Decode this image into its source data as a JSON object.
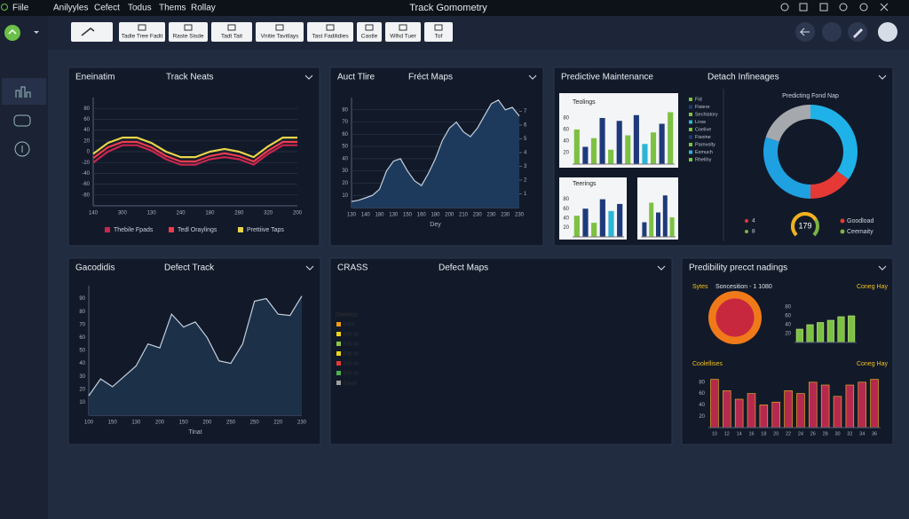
{
  "menu": [
    "Fiile",
    "Anilyyles",
    "Cefect",
    "Todus",
    "Thems",
    "Rollay"
  ],
  "app_title": "Track Gomometry",
  "toolbar": [
    "Tadle Tree Fadit",
    "Raste Sisde",
    "Tadt Tait",
    "Vnitie Tavitlays",
    "Tast Fadilidies",
    "Castle",
    "Wlhd Tuer",
    "Tof"
  ],
  "panels": [
    {
      "tag": "Eneinatim",
      "title": "Track Neats",
      "charts": [
        {
          "type": "line",
          "categories": [
            "140",
            null,
            "300",
            null,
            "130",
            null,
            "240",
            null,
            "180",
            null,
            "280",
            null,
            "320",
            null,
            "200"
          ],
          "series": [
            {
              "name": "Thebile Fpads",
              "color": "#c8264e",
              "values": [
                -20,
                0,
                12,
                12,
                2,
                -14,
                -24,
                -24,
                -14,
                -10,
                -14,
                -24,
                -4,
                12,
                12
              ]
            },
            {
              "name": "Tedl Oraylings",
              "color": "#ef3b4f",
              "values": [
                -12,
                8,
                18,
                18,
                8,
                -8,
                -18,
                -18,
                -8,
                -3,
                -8,
                -18,
                2,
                18,
                18
              ]
            },
            {
              "name": "Prettiive Taps",
              "color": "#e8d64a",
              "values": [
                -4,
                16,
                26,
                26,
                16,
                0,
                -10,
                -10,
                0,
                5,
                0,
                -10,
                10,
                26,
                26
              ]
            }
          ],
          "ylim": [
            -100,
            100
          ],
          "yticks": [
            -80,
            -60,
            -40,
            -20,
            0,
            20,
            40,
            60,
            80
          ],
          "grid": true
        }
      ]
    },
    {
      "tag": "Auct Tlire",
      "title": "Fréct Maps",
      "charts": [
        {
          "type": "area",
          "categories": [
            "130",
            null,
            "140",
            null,
            "180",
            null,
            "130",
            null,
            "150",
            null,
            "160",
            null,
            "180",
            null,
            "200",
            null,
            "210",
            null,
            "230",
            null,
            "230",
            null,
            "230",
            null,
            "230"
          ],
          "series": [
            {
              "name": "Fréct",
              "color": "#1d3a5c",
              "values": [
                5,
                6,
                8,
                10,
                15,
                30,
                38,
                40,
                30,
                22,
                18,
                28,
                40,
                55,
                65,
                70,
                62,
                58,
                65,
                75,
                85,
                88,
                80,
                82,
                75
              ]
            }
          ],
          "ylim": [
            0,
            90
          ],
          "yticks": [
            10,
            20,
            30,
            40,
            50,
            60,
            70,
            80
          ],
          "y2lim": [
            0,
            8
          ],
          "y2ticks": [
            1,
            2,
            3,
            4,
            5,
            6,
            7
          ],
          "x_label": "Dey",
          "grid": true
        }
      ]
    },
    {
      "tag": "Predictive Maintenance",
      "title": "Detach Infineages",
      "charts": [
        {
          "type": "bar",
          "title": "Teolings",
          "values": [
            60,
            30,
            45,
            80,
            25,
            75,
            50,
            85,
            35,
            55,
            70,
            90
          ],
          "colors": [
            "#7cc142",
            "#1e3a7a",
            "#7cc142",
            "#1e3a7a",
            "#7cc142",
            "#1e3a7a",
            "#7cc142",
            "#1e3a7a",
            "#2bb5d8",
            "#7cc142",
            "#1e3a7a",
            "#7cc142"
          ],
          "ylim": [
            0,
            100
          ],
          "yticks": [
            20,
            40,
            60,
            80
          ]
        },
        {
          "type": "bar",
          "title": "Teerings",
          "values": [
            45,
            60,
            30,
            80,
            55,
            70
          ],
          "colors": [
            "#7cc142",
            "#1e3a7a",
            "#7cc142",
            "#1e3a7a",
            "#2bb5d8",
            "#1e3a7a"
          ],
          "ylim": [
            0,
            100
          ],
          "yticks": [
            20,
            40,
            60,
            80
          ]
        },
        {
          "type": "bar",
          "values": [
            30,
            70,
            50,
            85,
            40
          ],
          "colors": [
            "#1e3a7a",
            "#7cc142",
            "#1e3a7a",
            "#1e3a7a",
            "#7cc142"
          ],
          "ylim": [
            0,
            100
          ]
        },
        {
          "type": "donut",
          "title": "Predicting Fond Nap",
          "values": [
            35,
            15,
            30,
            20
          ],
          "colors": [
            "#1fb2e8",
            "#e53935",
            "#1fa0e0",
            "#a5a8ad"
          ]
        },
        {
          "type": "gauge",
          "value": 179,
          "lim": [
            0,
            250
          ],
          "keys": [
            "4",
            "8"
          ],
          "legend": [
            {
              "name": "Goodload",
              "color": "#e53935"
            },
            {
              "name": "Ceemaity",
              "color": "#7cb342"
            }
          ]
        }
      ],
      "legend": [
        {
          "name": "Fid",
          "color": "#7cc142"
        },
        {
          "name": "Fisiere",
          "color": "#1e3a7a"
        },
        {
          "name": "Sechistory",
          "color": "#7cc142"
        },
        {
          "name": "Lrow",
          "color": "#2bb5d8"
        },
        {
          "name": "Coelive",
          "color": "#7cc142"
        },
        {
          "name": "Fisoine",
          "color": "#1e3a7a"
        },
        {
          "name": "Parnvolty",
          "color": "#7cc142"
        },
        {
          "name": "Exmuch",
          "color": "#2bb5d8"
        },
        {
          "name": "Rhelihy",
          "color": "#7cc142"
        }
      ]
    },
    {
      "tag": "Gacodidis",
      "title": "Defect Track",
      "charts": [
        {
          "type": "area",
          "categories": [
            "100",
            null,
            "150",
            null,
            "130",
            null,
            "200",
            null,
            "150",
            null,
            "200",
            null,
            "250",
            null,
            "250",
            null,
            "220",
            null,
            "230"
          ],
          "series": [
            {
              "name": "Defect",
              "color": "#1c3048",
              "values": [
                15,
                28,
                22,
                30,
                38,
                55,
                52,
                78,
                68,
                72,
                60,
                42,
                40,
                55,
                88,
                90,
                78,
                77,
                92
              ]
            }
          ],
          "ylim": [
            0,
            100
          ],
          "yticks": [
            10,
            20,
            30,
            40,
            50,
            60,
            70,
            80,
            90
          ],
          "x_label": "Tinat"
        }
      ]
    },
    {
      "tag": "CRASS",
      "title": "Defect Maps",
      "map_legend": {
        "title": "Dliebects",
        "items": [
          {
            "label": "F200",
            "color": "#f39c12"
          },
          {
            "label": "F20 00",
            "color": "#f1d21b"
          },
          {
            "label": "F20 00",
            "color": "#8bc34a"
          },
          {
            "label": "F20 00",
            "color": "#f1d21b"
          },
          {
            "label": "F20 00",
            "color": "#e53935"
          },
          {
            "label": "F20 00",
            "color": "#4caf50"
          },
          {
            "label": "Cavss",
            "color": "#9e9e9e"
          }
        ]
      }
    },
    {
      "tag": "Predibility precct nadings",
      "charts": [
        {
          "type": "ring",
          "title": "Sytes",
          "subtitle": "Soncesition - 1 1080"
        },
        {
          "type": "bar",
          "title": "Coneg Hay",
          "values": [
            30,
            40,
            45,
            50,
            58,
            60
          ],
          "colors": [
            "#7cc142",
            "#7cc142",
            "#7cc142",
            "#7cc142",
            "#7cc142",
            "#7cc142"
          ],
          "ylim": [
            0,
            100
          ],
          "yticks": [
            20,
            40,
            60,
            80
          ]
        },
        {
          "type": "bar",
          "title": "Coolellises",
          "subtitle": "Coneg Hay",
          "categories": [
            "10",
            "12",
            "14",
            "16",
            "18",
            "20",
            "22",
            "24",
            "26",
            "28",
            "30",
            "32",
            "34",
            "36"
          ],
          "values": [
            85,
            65,
            50,
            60,
            40,
            45,
            65,
            60,
            80,
            75,
            55,
            75,
            80,
            85
          ],
          "colors": [
            "#b5294f",
            "#b5294f",
            "#b5294f",
            "#b5294f",
            "#b5294f",
            "#b5294f",
            "#b5294f",
            "#b5294f",
            "#b5294f",
            "#b5294f",
            "#b5294f",
            "#b5294f",
            "#b5294f",
            "#b5294f"
          ],
          "ylim": [
            0,
            100
          ],
          "yticks": [
            20,
            40,
            60,
            80
          ]
        }
      ]
    }
  ]
}
